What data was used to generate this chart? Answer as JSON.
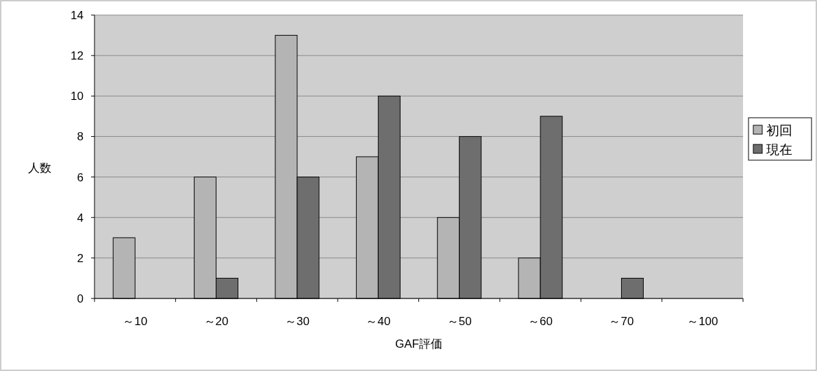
{
  "chart_data": {
    "type": "bar",
    "categories": [
      "～10",
      "～20",
      "～30",
      "～40",
      "～50",
      "～60",
      "～70",
      "～100"
    ],
    "series": [
      {
        "name": "初回",
        "color": "#b4b4b4",
        "values": [
          3,
          6,
          13,
          7,
          4,
          2,
          0,
          0
        ]
      },
      {
        "name": "現在",
        "color": "#6e6e6e",
        "values": [
          0,
          1,
          6,
          10,
          8,
          9,
          1,
          0
        ]
      }
    ],
    "xlabel": "GAF評価",
    "ylabel": "人数",
    "ylim": [
      0,
      14
    ],
    "yticks": [
      0,
      2,
      4,
      6,
      8,
      10,
      12,
      14
    ],
    "grid": "y",
    "legend": "right"
  }
}
